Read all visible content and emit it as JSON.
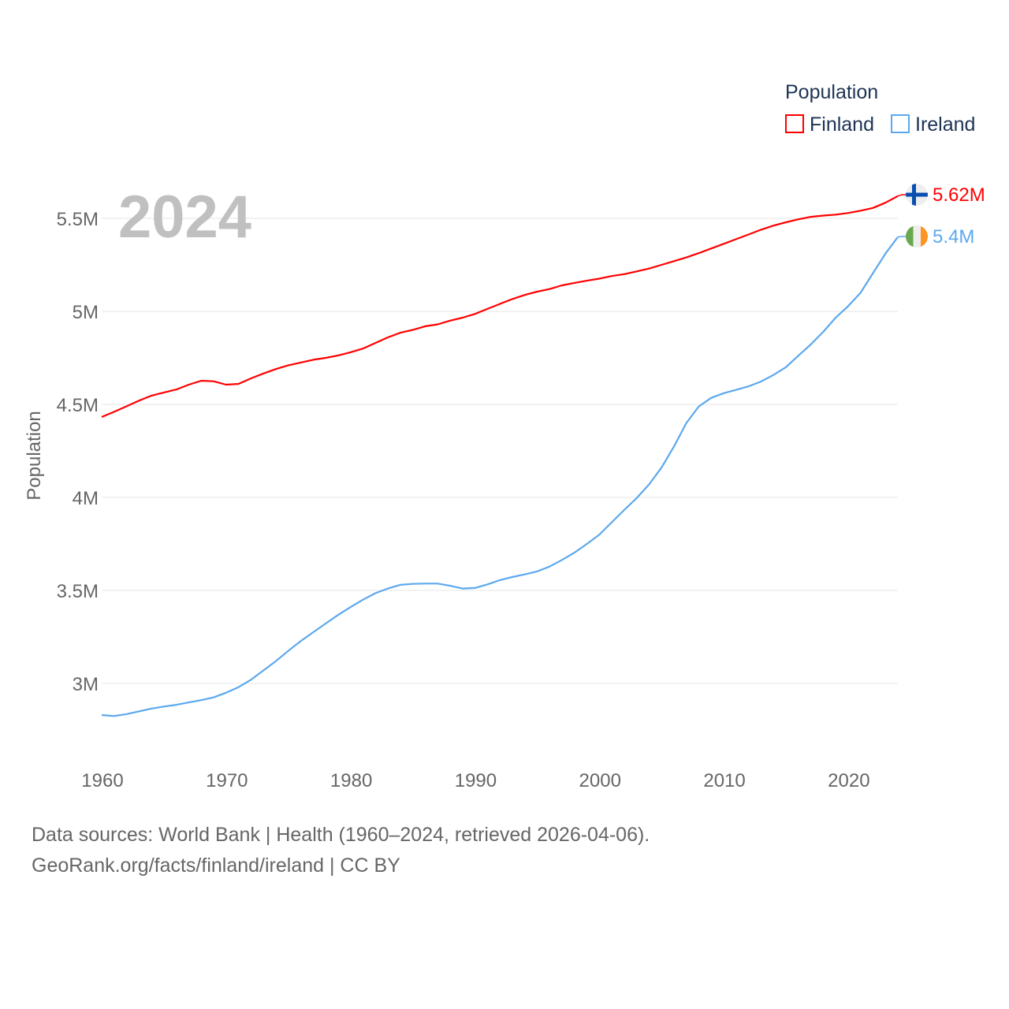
{
  "chart_data": {
    "type": "line",
    "ylabel": "Population",
    "xlabel": "",
    "year_label": "2024",
    "legend": {
      "title": "Population",
      "placement": "top-right",
      "entries": [
        "Finland",
        "Ireland"
      ]
    },
    "xlim": [
      1960,
      2024
    ],
    "ylim": [
      2.7,
      5.75
    ],
    "x_ticks": [
      1960,
      1970,
      1980,
      1990,
      2000,
      2010,
      2020
    ],
    "x_tick_labels": [
      "1960",
      "1970",
      "1980",
      "1990",
      "2000",
      "2010",
      "2020"
    ],
    "y_ticks": [
      3,
      3.5,
      4,
      4.5,
      5,
      5.5
    ],
    "y_tick_labels": [
      "3M",
      "3.5M",
      "4M",
      "4.5M",
      "5M",
      "5.5M"
    ],
    "grid": true,
    "x": [
      1960,
      1961,
      1962,
      1963,
      1964,
      1965,
      1966,
      1967,
      1968,
      1969,
      1970,
      1971,
      1972,
      1973,
      1974,
      1975,
      1976,
      1977,
      1978,
      1979,
      1980,
      1981,
      1982,
      1983,
      1984,
      1985,
      1986,
      1987,
      1988,
      1989,
      1990,
      1991,
      1992,
      1993,
      1994,
      1995,
      1996,
      1997,
      1998,
      1999,
      2000,
      2001,
      2002,
      2003,
      2004,
      2005,
      2006,
      2007,
      2008,
      2009,
      2010,
      2011,
      2012,
      2013,
      2014,
      2015,
      2016,
      2017,
      2018,
      2019,
      2020,
      2021,
      2022,
      2023,
      2024
    ],
    "series": [
      {
        "name": "Finland",
        "color": "#ff0000",
        "end_label": "5.62M",
        "flag": "finland-flag",
        "values": [
          4.432,
          4.46,
          4.49,
          4.52,
          4.547,
          4.564,
          4.58,
          4.606,
          4.627,
          4.624,
          4.606,
          4.61,
          4.64,
          4.666,
          4.69,
          4.71,
          4.725,
          4.74,
          4.75,
          4.763,
          4.78,
          4.8,
          4.83,
          4.86,
          4.885,
          4.9,
          4.92,
          4.93,
          4.95,
          4.966,
          4.986,
          5.013,
          5.04,
          5.066,
          5.088,
          5.106,
          5.12,
          5.14,
          5.153,
          5.165,
          5.176,
          5.19,
          5.2,
          5.215,
          5.23,
          5.25,
          5.27,
          5.29,
          5.313,
          5.338,
          5.363,
          5.388,
          5.413,
          5.439,
          5.461,
          5.479,
          5.495,
          5.508,
          5.515,
          5.52,
          5.529,
          5.541,
          5.556,
          5.584,
          5.62
        ]
      },
      {
        "name": "Ireland",
        "color": "#5ca8ee",
        "end_label": "5.4M",
        "flag": "ireland-flag",
        "values": [
          2.83,
          2.825,
          2.835,
          2.85,
          2.865,
          2.876,
          2.885,
          2.898,
          2.91,
          2.925,
          2.95,
          2.98,
          3.02,
          3.07,
          3.12,
          3.175,
          3.228,
          3.275,
          3.322,
          3.368,
          3.41,
          3.45,
          3.485,
          3.51,
          3.53,
          3.535,
          3.537,
          3.537,
          3.525,
          3.51,
          3.513,
          3.532,
          3.555,
          3.572,
          3.586,
          3.602,
          3.628,
          3.664,
          3.703,
          3.75,
          3.8,
          3.866,
          3.932,
          3.996,
          4.07,
          4.16,
          4.273,
          4.4,
          4.489,
          4.535,
          4.56,
          4.578,
          4.597,
          4.623,
          4.658,
          4.7,
          4.762,
          4.822,
          4.89,
          4.966,
          5.028,
          5.1,
          5.205,
          5.31,
          5.4
        ]
      }
    ]
  },
  "footer": {
    "line1": "Data sources: World Bank | Health (1960–2024, retrieved 2026-04-06).",
    "line2": "GeoRank.org/facts/finland/ireland | CC BY"
  }
}
